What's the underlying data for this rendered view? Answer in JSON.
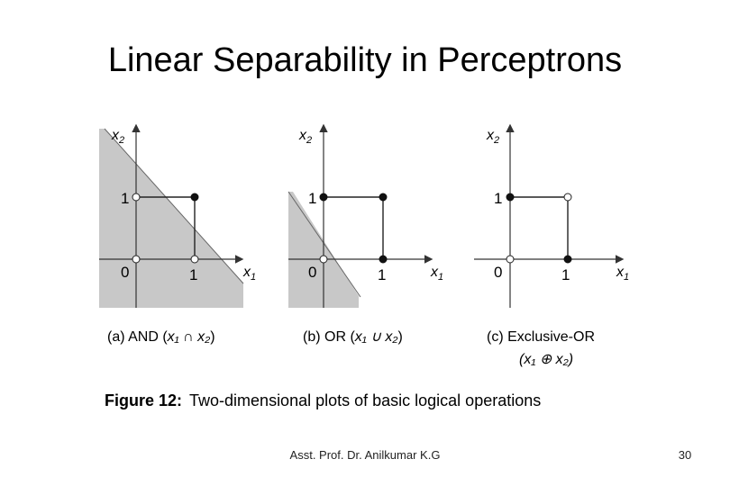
{
  "slide": {
    "title": "Linear Separability in Perceptrons",
    "footer": "Asst. Prof. Dr. Anilkumar K.G",
    "page_number": "30"
  },
  "figure": {
    "caption_label": "Figure 12:",
    "caption_text": "Two-dimensional plots of basic logical operations",
    "axis_x_letter": "x",
    "axis_x_sub": "1",
    "axis_y_letter": "x",
    "axis_y_sub": "2",
    "tick_zero": "0",
    "tick_one": "1",
    "panels": [
      {
        "id": "and",
        "label_prefix": "(a) AND (",
        "label_expr": "x₁ ∩ x₂",
        "label_suffix": ")",
        "points": [
          {
            "x1": 0,
            "x2": 0,
            "output": 0
          },
          {
            "x1": 1,
            "x2": 0,
            "output": 0
          },
          {
            "x1": 0,
            "x2": 1,
            "output": 0
          },
          {
            "x1": 1,
            "x2": 1,
            "output": 1
          }
        ],
        "shaded_region": true
      },
      {
        "id": "or",
        "label_prefix": "(b) OR (",
        "label_expr": "x₁ ∪ x₂",
        "label_suffix": ")",
        "points": [
          {
            "x1": 0,
            "x2": 0,
            "output": 0
          },
          {
            "x1": 1,
            "x2": 0,
            "output": 1
          },
          {
            "x1": 0,
            "x2": 1,
            "output": 1
          },
          {
            "x1": 1,
            "x2": 1,
            "output": 1
          }
        ],
        "shaded_region": true
      },
      {
        "id": "xor",
        "label_line1": "(c) Exclusive-OR",
        "label_line2": "(x₁ ⊕ x₂)",
        "points": [
          {
            "x1": 0,
            "x2": 0,
            "output": 0
          },
          {
            "x1": 1,
            "x2": 0,
            "output": 1
          },
          {
            "x1": 0,
            "x2": 1,
            "output": 1
          },
          {
            "x1": 1,
            "x2": 1,
            "output": 0
          }
        ],
        "shaded_region": false
      }
    ]
  },
  "colors": {
    "shade": "#c8c8c8",
    "axis": "#333333",
    "point_filled": "#111111",
    "point_open": "#ffffff"
  }
}
